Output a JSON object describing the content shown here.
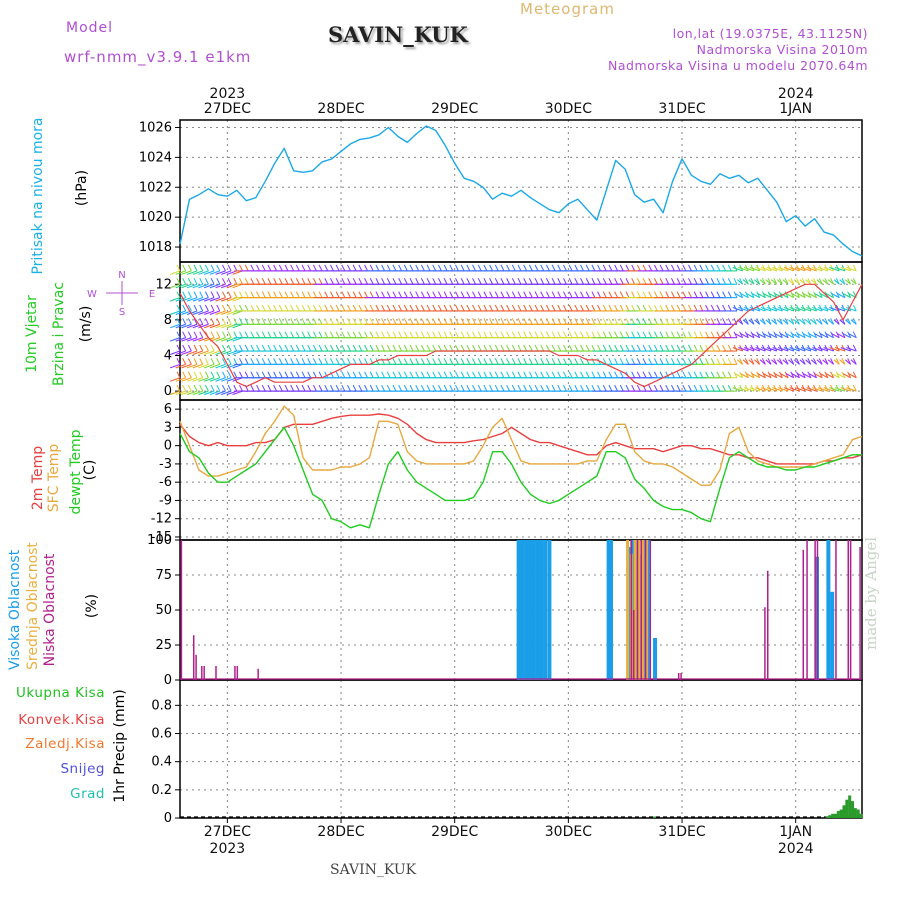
{
  "header": {
    "model_label": "Model",
    "model_version": "wrf-nmm_v3.9.1 e1km",
    "station": "SAVIN_KUK",
    "meteogram_label": "Meteogram",
    "location": "lon,lat (19.0375E, 43.1125N)",
    "altitude": "Nadmorska Visina 2010m",
    "model_altitude": "Nadmorska Visina u modelu 2070.64m"
  },
  "footer": {
    "station": "SAVIN_KUK",
    "credit": "made by Angel"
  },
  "time_axis": {
    "start": "2023-12-26T14:00",
    "end": "2024-01-01T14:00",
    "ticks": [
      {
        "day": "27DEC",
        "year": "2023"
      },
      {
        "day": "28DEC",
        "year": ""
      },
      {
        "day": "29DEC",
        "year": ""
      },
      {
        "day": "30DEC",
        "year": ""
      },
      {
        "day": "31DEC",
        "year": ""
      },
      {
        "day": "1JAN",
        "year": "2024"
      }
    ]
  },
  "panels": {
    "pressure": {
      "label": "Pritisak na nivou mora",
      "unit": "(hPa)",
      "label_color": "#1ab0e8"
    },
    "wind": {
      "label1": "10m Vjetar",
      "label2": "Brzina i Pravac",
      "unit": "(m/s)",
      "label_color": "#22cc22",
      "compass": {
        "n": "N",
        "s": "S",
        "e": "E",
        "w": "W"
      }
    },
    "temp": {
      "label1": "2m Temp",
      "label2": "SFC Temp",
      "label3": "dewpt Temp",
      "unit": "(C)"
    },
    "cloud": {
      "label1": "Visoka Oblacnost",
      "label2": "Srednja Oblacnost",
      "label3": "Niska Oblacnost",
      "unit": "(%)"
    },
    "precip": {
      "unit_label": "1hr Precip (mm)",
      "legend": [
        {
          "name": "Ukupna Kisa",
          "color": "#22c022"
        },
        {
          "name": "Konvek.Kisa",
          "color": "#e84040"
        },
        {
          "name": "Zaledj.Kisa",
          "color": "#f07830"
        },
        {
          "name": "Snijeg",
          "color": "#5050e0"
        },
        {
          "name": "Grad",
          "color": "#20c0b0"
        }
      ]
    }
  },
  "colors": {
    "pressure": "#1aa8e8",
    "t2m": "#e84040",
    "tsfc": "#e8a840",
    "dewpt": "#20cc20",
    "cloud_high": "#1a9ee8",
    "cloud_mid": "#e8b040",
    "cloud_low": "#b0208c",
    "precip_total": "#2a9a2a",
    "wind_speed": "#e84040"
  },
  "chart_data": [
    {
      "type": "line",
      "title": "Pritisak na nivou mora",
      "ylabel": "(hPa)",
      "ylim": [
        1017,
        1026.5
      ],
      "yticks": [
        1018,
        1020,
        1022,
        1024,
        1026
      ],
      "x_hours": [
        0,
        2,
        4,
        6,
        8,
        10,
        12,
        14,
        16,
        18,
        20,
        22,
        24,
        26,
        28,
        30,
        32,
        34,
        36,
        38,
        40,
        42,
        44,
        46,
        48,
        50,
        52,
        54,
        56,
        58,
        60,
        62,
        64,
        66,
        68,
        70,
        72,
        74,
        76,
        78,
        80,
        82,
        84,
        86,
        88,
        90,
        92,
        94,
        96,
        98,
        100,
        102,
        104,
        106,
        108,
        110,
        112,
        114,
        116,
        118,
        120,
        122,
        124,
        126,
        128,
        130,
        132,
        134,
        136,
        138,
        140,
        142,
        144
      ],
      "values": [
        1018.2,
        1021.2,
        1021.5,
        1021.9,
        1021.5,
        1021.4,
        1021.8,
        1021.1,
        1021.3,
        1022.4,
        1023.6,
        1024.6,
        1023.1,
        1023.0,
        1023.1,
        1023.7,
        1023.9,
        1024.4,
        1024.9,
        1025.2,
        1025.3,
        1025.5,
        1026.0,
        1025.4,
        1025.0,
        1025.6,
        1026.1,
        1025.8,
        1024.8,
        1023.6,
        1022.6,
        1022.4,
        1022.0,
        1021.2,
        1021.6,
        1021.4,
        1021.8,
        1021.3,
        1020.9,
        1020.5,
        1020.3,
        1020.9,
        1021.2,
        1020.5,
        1019.8,
        1021.8,
        1023.8,
        1023.2,
        1021.5,
        1021.0,
        1021.2,
        1020.3,
        1022.4,
        1023.9,
        1022.8,
        1022.4,
        1022.2,
        1022.9,
        1022.6,
        1022.8,
        1022.3,
        1022.6,
        1021.8,
        1021.0,
        1019.7,
        1020.1,
        1019.4,
        1019.9,
        1019.0,
        1018.8,
        1018.2,
        1017.7,
        1017.4
      ]
    },
    {
      "type": "line",
      "title": "10m Vjetar Brzina i Pravac",
      "ylabel": "(m/s)",
      "ylim": [
        -1,
        14.5
      ],
      "yticks": [
        0,
        4,
        8,
        12
      ],
      "x_hours": [
        0,
        2,
        4,
        6,
        8,
        10,
        12,
        14,
        16,
        18,
        20,
        22,
        24,
        26,
        28,
        30,
        32,
        34,
        36,
        38,
        40,
        42,
        44,
        46,
        48,
        50,
        52,
        54,
        56,
        58,
        60,
        62,
        64,
        66,
        68,
        70,
        72,
        74,
        76,
        78,
        80,
        82,
        84,
        86,
        88,
        90,
        92,
        94,
        96,
        98,
        100,
        102,
        104,
        106,
        108,
        110,
        112,
        114,
        116,
        118,
        120,
        122,
        124,
        126,
        128,
        130,
        132,
        134,
        136,
        138,
        140,
        142,
        144
      ],
      "series": [
        {
          "values": [
            11,
            9,
            7.5,
            6,
            5,
            3,
            1,
            0.5,
            1,
            1.5,
            1,
            1,
            1,
            1,
            1.5,
            1.5,
            2,
            2.5,
            3,
            3,
            3,
            3.5,
            3.5,
            4,
            4,
            4,
            4,
            4.5,
            4.5,
            4.5,
            4.5,
            4.5,
            4.5,
            4.5,
            4.5,
            4.5,
            4.5,
            4.5,
            4.5,
            4.5,
            4,
            4,
            4,
            3.5,
            3.5,
            3,
            2.5,
            2,
            1,
            0.5,
            1,
            1.5,
            2,
            2.5,
            3,
            4,
            5,
            6,
            7,
            8,
            9,
            9.5,
            10,
            10.5,
            11,
            11.5,
            12,
            12,
            11,
            10,
            8,
            10,
            12
          ]
        }
      ]
    },
    {
      "type": "line",
      "title": "2m Temp / SFC Temp / dewpt Temp",
      "ylabel": "(C)",
      "ylim": [
        -15.5,
        7.5
      ],
      "yticks": [
        6,
        3,
        0,
        -3,
        -6,
        -9,
        -12,
        -15
      ],
      "x_hours": [
        0,
        2,
        4,
        6,
        8,
        10,
        12,
        14,
        16,
        18,
        20,
        22,
        24,
        26,
        28,
        30,
        32,
        34,
        36,
        38,
        40,
        42,
        44,
        46,
        48,
        50,
        52,
        54,
        56,
        58,
        60,
        62,
        64,
        66,
        68,
        70,
        72,
        74,
        76,
        78,
        80,
        82,
        84,
        86,
        88,
        90,
        92,
        94,
        96,
        98,
        100,
        102,
        104,
        106,
        108,
        110,
        112,
        114,
        116,
        118,
        120,
        122,
        124,
        126,
        128,
        130,
        132,
        134,
        136,
        138,
        140,
        142,
        144
      ],
      "series": [
        {
          "name": "2m Temp",
          "values": [
            3.5,
            1.5,
            0.5,
            0,
            0.5,
            0,
            0,
            0,
            0.5,
            0.5,
            1,
            3,
            3.5,
            3.5,
            3.5,
            4,
            4.5,
            4.8,
            5,
            5,
            5,
            5.2,
            5,
            4.5,
            3.5,
            2,
            1,
            0.5,
            0.5,
            0.5,
            0.5,
            0.8,
            1,
            1.5,
            2,
            3,
            2,
            1,
            0.5,
            0.5,
            0,
            -0.5,
            -1,
            -1.5,
            -1.5,
            0,
            0.5,
            0,
            -0.5,
            -0.5,
            -0.5,
            -1,
            -0.5,
            0,
            0,
            -0.5,
            -0.5,
            -1,
            -1.5,
            -1.5,
            -2,
            -2,
            -2.5,
            -3,
            -3,
            -3,
            -3,
            -3,
            -2.5,
            -2.5,
            -2,
            -2,
            -1.5
          ]
        },
        {
          "name": "SFC Temp",
          "values": [
            4,
            0,
            -4,
            -5,
            -5,
            -4.5,
            -4,
            -3.5,
            -1,
            2,
            4,
            6.5,
            5,
            -2,
            -4,
            -4,
            -4,
            -3.5,
            -3.5,
            -3,
            -2,
            4,
            4,
            3.5,
            -1,
            -2.5,
            -3,
            -3,
            -3,
            -3,
            -3,
            -2.5,
            0,
            3,
            4.5,
            1,
            -2.5,
            -3,
            -3,
            -3,
            -3,
            -3,
            -3,
            -2.5,
            -2.5,
            1,
            3.5,
            3.5,
            -1,
            -2.5,
            -3,
            -3,
            -3.5,
            -4.5,
            -5.5,
            -6.5,
            -6.5,
            -4,
            2,
            3,
            -1,
            -2.5,
            -3,
            -3.5,
            -3.5,
            -3.5,
            -3.5,
            -3,
            -2.5,
            -2,
            -1.5,
            1,
            1.5
          ]
        },
        {
          "name": "dewpt Temp",
          "values": [
            2,
            -1,
            -2,
            -4.5,
            -6,
            -6,
            -5,
            -4,
            -3,
            -1,
            1,
            3,
            0,
            -4,
            -8,
            -9,
            -12,
            -12.5,
            -13.5,
            -13,
            -13.5,
            -8,
            -3,
            -1,
            -4,
            -6,
            -7,
            -8,
            -9,
            -9,
            -9,
            -8.5,
            -6,
            -1,
            -1,
            -3,
            -6,
            -8,
            -9,
            -9.5,
            -9,
            -8,
            -7,
            -6,
            -5,
            -1,
            -1,
            -2,
            -5.5,
            -7,
            -9,
            -10,
            -10.5,
            -10.5,
            -11,
            -12,
            -12.5,
            -7,
            -2,
            -1,
            -2,
            -3,
            -3.5,
            -3.5,
            -4,
            -4,
            -3.5,
            -3.5,
            -3,
            -2.5,
            -2,
            -1.5,
            -1.5
          ]
        }
      ]
    },
    {
      "type": "bar",
      "title": "Visoka / Srednja / Niska Oblacnost",
      "ylabel": "(%)",
      "ylim": [
        0,
        100
      ],
      "yticks": [
        0,
        25,
        50,
        75,
        100
      ],
      "series": [
        {
          "name": "Visoka Oblacnost",
          "x_hours": [
            71.5,
            72.3,
            73.1,
            73.9,
            74.7,
            75.5,
            76.3,
            77.1,
            78,
            90.5,
            91,
            94.7,
            95.5,
            96.3,
            97.1,
            97.9,
            98.7,
            100.3,
            134.5,
            136.9,
            137.7
          ],
          "values": [
            100,
            100,
            100,
            100,
            100,
            100,
            100,
            100,
            100,
            100,
            100,
            95,
            100,
            100,
            90,
            100,
            100,
            30,
            88,
            100,
            63
          ]
        },
        {
          "name": "Srednja Oblacnost",
          "x_hours": [
            94.5,
            95.3,
            96.1,
            96.9,
            97.7,
            98.5
          ],
          "values": [
            100,
            90,
            100,
            100,
            100,
            100
          ]
        },
        {
          "name": "Niska Oblacnost",
          "x_hours": [
            0.3,
            2.9,
            3.4,
            4.6,
            5.1,
            7.6,
            11.6,
            12.1,
            16.5,
            95.3,
            95.8,
            96.6,
            97.4,
            98.3,
            99.3,
            105.3,
            105.8,
            123.5,
            124.1,
            131.6,
            132.4,
            134.1,
            134.6,
            138.5,
            141.1,
            141.6,
            143.6
          ],
          "values": [
            100,
            32,
            18,
            10,
            10,
            10,
            10,
            10,
            8,
            100,
            50,
            100,
            100,
            100,
            100,
            5,
            5,
            52,
            78,
            93,
            100,
            100,
            100,
            100,
            100,
            100,
            95
          ]
        }
      ]
    },
    {
      "type": "bar",
      "title": "1hr Precip",
      "ylabel": "1hr Precip (mm)",
      "ylim": [
        0,
        0.98
      ],
      "yticks": [
        0,
        0.2,
        0.4,
        0.6,
        0.8
      ],
      "series": [
        {
          "name": "Ukupna Kisa",
          "x_hours": [
            100.2,
            136.6,
            137.2,
            137.8,
            138.4,
            139.0,
            139.6,
            140.2,
            140.8,
            141.4,
            142.0,
            142.6,
            143.2,
            143.8
          ],
          "values": [
            0.01,
            0.01,
            0.02,
            0.03,
            0.03,
            0.05,
            0.06,
            0.09,
            0.13,
            0.16,
            0.12,
            0.07,
            0.06,
            0.03
          ]
        }
      ]
    }
  ]
}
